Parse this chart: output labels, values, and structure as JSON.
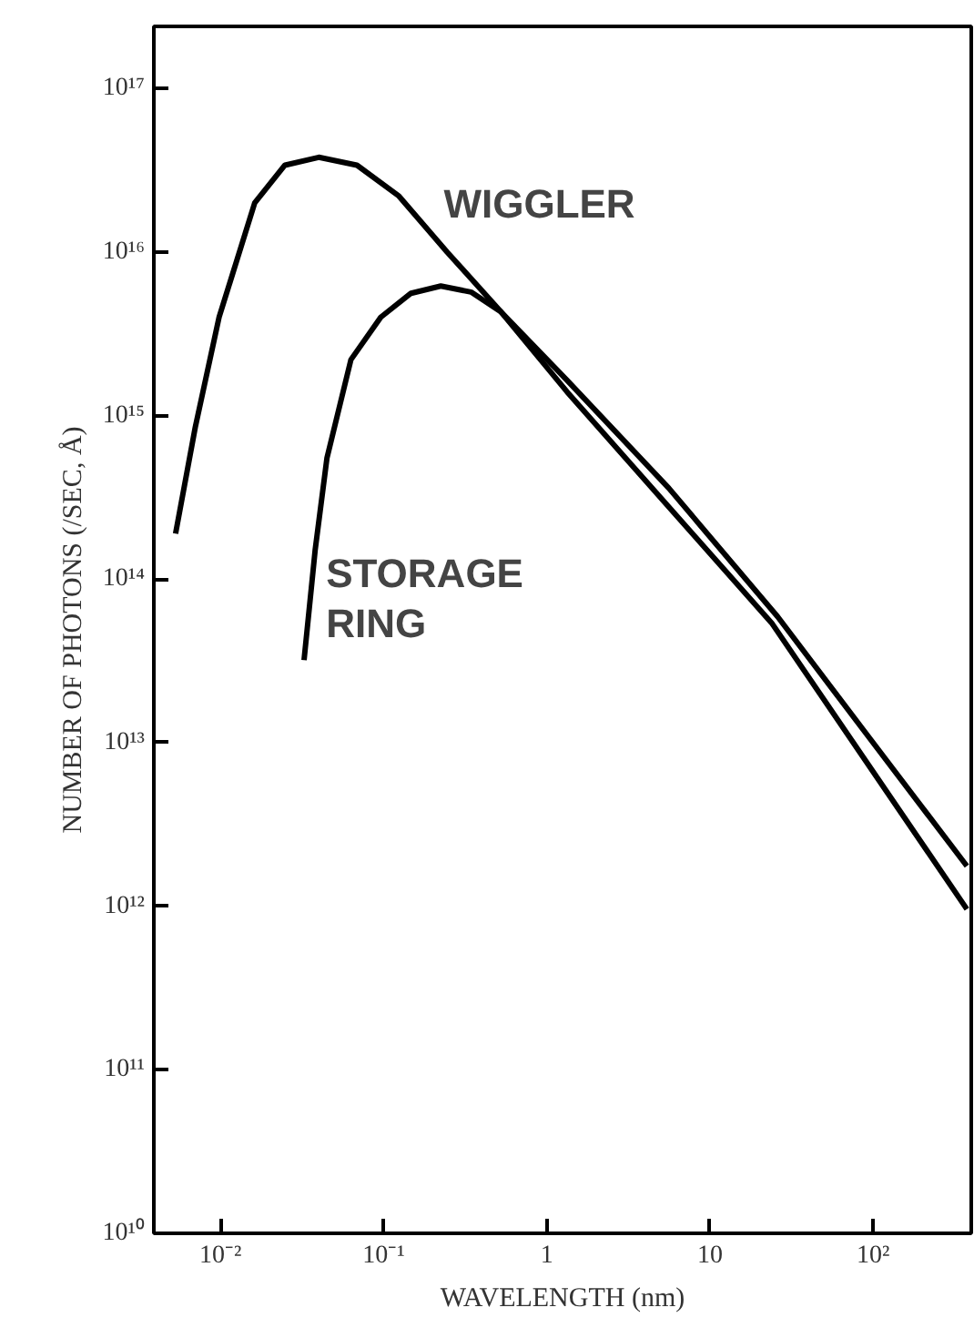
{
  "chart_data": {
    "type": "line",
    "xlabel": "WAVELENGTH (nm)",
    "ylabel": "NUMBER OF PHOTONS (/SEC, Å)",
    "log": "xy",
    "grid": false,
    "marker": "none",
    "line_style": "solid",
    "xlim": [
      0.0039,
      400
    ],
    "ylim": [
      10000000000.0,
      2.4e+17
    ],
    "xticks": [
      {
        "value": 0.01,
        "label": "10⁻²"
      },
      {
        "value": 0.1,
        "label": "10⁻¹"
      },
      1,
      10,
      {
        "value": 100,
        "label": "10²"
      }
    ],
    "yticks": [
      {
        "value": 10000000000.0,
        "label": "10¹⁰"
      },
      {
        "value": 100000000000.0,
        "label": "10¹¹"
      },
      {
        "value": 1000000000000.0,
        "label": "10¹²"
      },
      {
        "value": 10000000000000.0,
        "label": "10¹³"
      },
      {
        "value": 100000000000000.0,
        "label": "10¹⁴"
      },
      {
        "value": 1000000000000000.0,
        "label": "10¹⁵"
      },
      {
        "value": 1e+16,
        "label": "10¹⁶"
      },
      {
        "value": 1e+17,
        "label": "10¹⁷"
      }
    ],
    "series": [
      {
        "color": "#000000",
        "x": [
          0.0053,
          0.007,
          0.0098,
          0.0162,
          0.0248,
          0.04,
          0.0686,
          0.124,
          0.245,
          0.525,
          1.32,
          5.6,
          26,
          93,
          376
        ],
        "values": [
          190000000000000.0,
          850000000000000.0,
          4000000000000000.0,
          2e+16,
          3.4e+16,
          3.8e+16,
          3.4e+16,
          2.2e+16,
          1e+16,
          4300000000000000.0,
          1660000000000000.0,
          360000000000000.0,
          59000000000000.0,
          11000000000000.0,
          1760000000000.0
        ]
      },
      {
        "color": "#000000",
        "x": [
          0.0325,
          0.038,
          0.0449,
          0.063,
          0.096,
          0.147,
          0.224,
          0.343,
          0.525,
          1.33,
          5.2,
          23.9,
          93,
          376
        ],
        "values": [
          32000000000000.0,
          150000000000000.0,
          550000000000000.0,
          2200000000000000.0,
          4000000000000000.0,
          5600000000000000.0,
          6200000000000000.0,
          5700000000000000.0,
          4300000000000000.0,
          1400000000000000.0,
          300000000000000.0,
          54000000000000.0,
          7400000000000.0,
          960000000000.0
        ]
      }
    ],
    "annotations": [
      {
        "text": "WIGGLER",
        "x": 0.2,
        "y": 1.3e+16
      },
      {
        "text": "STORAGE RING",
        "x": 0.038,
        "y": 150000000000000.0
      }
    ]
  }
}
